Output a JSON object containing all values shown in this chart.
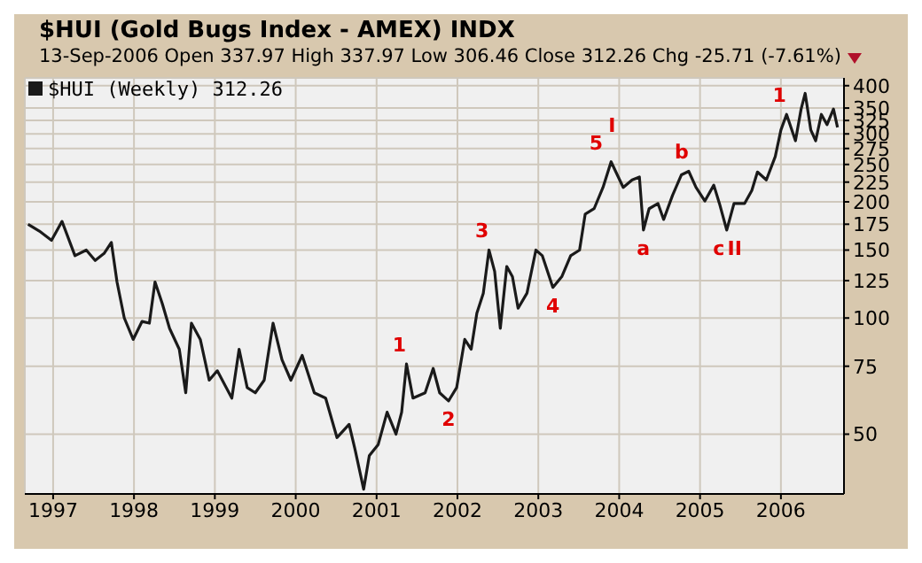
{
  "chart_data": {
    "type": "line",
    "title": "$HUI (Gold Bugs Index - AMEX) INDX",
    "subtitle": "13-Sep-2006  Open 337.97  High 337.97  Low 306.46  Close 312.26  Chg -25.71 (-7.61%)",
    "log": "y",
    "grid": true,
    "legend": "top left",
    "marker": "none",
    "line_style": "solid",
    "xlim": [
      1996.65,
      2006.78
    ],
    "xticks": [
      1997,
      1998,
      1999,
      2000,
      2001,
      2002,
      2003,
      2004,
      2005,
      2006
    ],
    "ylim": [
      35,
      419
    ],
    "yticks": [
      50,
      75,
      100,
      125,
      150,
      175,
      200,
      225,
      250,
      275,
      300,
      325,
      350,
      400
    ],
    "series": [
      {
        "name": "$HUI (Weekly) 312.26",
        "color": "#1a1a1a",
        "x": [
          1996.69,
          1996.83,
          1996.98,
          1997.11,
          1997.27,
          1997.41,
          1997.52,
          1997.63,
          1997.72,
          1997.79,
          1997.88,
          1997.99,
          1998.1,
          1998.19,
          1998.26,
          1998.35,
          1998.44,
          1998.56,
          1998.64,
          1998.71,
          1998.82,
          1998.93,
          1999.03,
          1999.21,
          1999.3,
          1999.4,
          1999.5,
          1999.61,
          1999.72,
          1999.83,
          1999.94,
          2000.08,
          2000.23,
          2000.37,
          2000.51,
          2000.66,
          2000.73,
          2000.84,
          2000.91,
          2001.02,
          2001.13,
          2001.24,
          2001.31,
          2001.37,
          2001.45,
          2001.6,
          2001.7,
          2001.78,
          2001.89,
          2001.99,
          2002.09,
          2002.17,
          2002.24,
          2002.32,
          2002.39,
          2002.46,
          2002.53,
          2002.61,
          2002.68,
          2002.75,
          2002.86,
          2002.97,
          2003.05,
          2003.18,
          2003.29,
          2003.4,
          2003.51,
          2003.58,
          2003.69,
          2003.8,
          2003.9,
          2004.05,
          2004.16,
          2004.25,
          2004.3,
          2004.37,
          2004.48,
          2004.55,
          2004.66,
          2004.77,
          2004.86,
          2004.95,
          2005.06,
          2005.17,
          2005.24,
          2005.33,
          2005.42,
          2005.55,
          2005.64,
          2005.71,
          2005.82,
          2005.93,
          2006.0,
          2006.07,
          2006.18,
          2006.25,
          2006.3,
          2006.37,
          2006.43,
          2006.5,
          2006.57,
          2006.65,
          2006.7
        ],
        "values": [
          175,
          168,
          159,
          178,
          145,
          150,
          141,
          147,
          157,
          124,
          100,
          88,
          98,
          97,
          124,
          109,
          94,
          83,
          64,
          97,
          88,
          69,
          73,
          62,
          83,
          66,
          64,
          69,
          97,
          78,
          69,
          80,
          64,
          62,
          49,
          53,
          46,
          36,
          44,
          47,
          57,
          50,
          57,
          76,
          62,
          64,
          74,
          64,
          61,
          66,
          88,
          83,
          103,
          116,
          150,
          132,
          94,
          136,
          128,
          106,
          116,
          150,
          145,
          120,
          128,
          145,
          150,
          186,
          192,
          218,
          254,
          218,
          228,
          232,
          169,
          192,
          198,
          180,
          208,
          235,
          240,
          218,
          201,
          221,
          198,
          169,
          198,
          198,
          214,
          239,
          228,
          262,
          307,
          337,
          288,
          348,
          382,
          307,
          288,
          337,
          317,
          348,
          312
        ]
      }
    ],
    "annotations": [
      {
        "text": "1",
        "x": 2001.37,
        "y": 76
      },
      {
        "text": "2",
        "x": 2001.89,
        "y": 61
      },
      {
        "text": "3",
        "x": 2002.39,
        "y": 150
      },
      {
        "text": "4",
        "x": 2003.18,
        "y": 120
      },
      {
        "text": "5",
        "x": 2003.9,
        "y": 254
      },
      {
        "text": "I",
        "x": 2003.9,
        "y": 254
      },
      {
        "text": "a",
        "x": 2004.3,
        "y": 169
      },
      {
        "text": "b",
        "x": 2004.86,
        "y": 240
      },
      {
        "text": "c",
        "x": 2005.33,
        "y": 169
      },
      {
        "text": "II",
        "x": 2005.33,
        "y": 169
      },
      {
        "text": "1",
        "x": 2006.07,
        "y": 337
      }
    ]
  }
}
